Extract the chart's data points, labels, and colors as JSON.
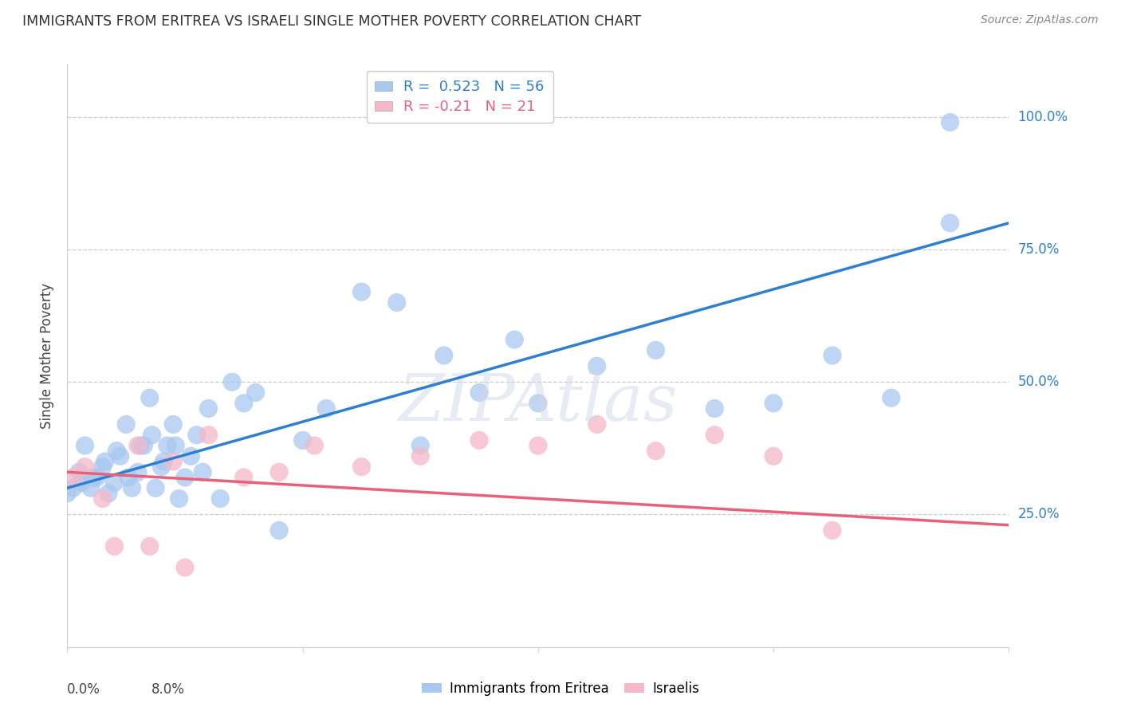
{
  "title": "IMMIGRANTS FROM ERITREA VS ISRAELI SINGLE MOTHER POVERTY CORRELATION CHART",
  "source": "Source: ZipAtlas.com",
  "ylabel": "Single Mother Poverty",
  "xmin": 0.0,
  "xmax": 8.0,
  "ymin": 0.0,
  "ymax": 110.0,
  "yticks": [
    25.0,
    50.0,
    75.0,
    100.0
  ],
  "ytick_labels": [
    "25.0%",
    "50.0%",
    "75.0%",
    "100.0%"
  ],
  "xtick_positions": [
    0.0,
    2.0,
    4.0,
    6.0,
    8.0
  ],
  "xtick_labels": [
    "0.0%",
    "",
    "",
    "",
    "8.0%"
  ],
  "watermark": "ZIPAtlas",
  "legend_blue_label": "Immigrants from Eritrea",
  "legend_pink_label": "Israelis",
  "r_blue": 0.523,
  "n_blue": 56,
  "r_pink": -0.21,
  "n_pink": 21,
  "blue_color": "#A8C8F0",
  "blue_line_color": "#2E7FD0",
  "pink_color": "#F5B8C8",
  "pink_line_color": "#E8607A",
  "blue_line_y0": 30.0,
  "blue_line_y1": 80.0,
  "pink_line_y0": 33.0,
  "pink_line_y1": 23.0,
  "blue_points_x": [
    0.0,
    0.1,
    0.15,
    0.2,
    0.25,
    0.3,
    0.35,
    0.4,
    0.45,
    0.5,
    0.55,
    0.6,
    0.65,
    0.7,
    0.75,
    0.8,
    0.85,
    0.9,
    0.95,
    1.0,
    1.05,
    1.1,
    1.15,
    1.2,
    1.3,
    1.4,
    1.5,
    1.6,
    1.8,
    2.0,
    2.2,
    2.5,
    2.8,
    3.0,
    3.2,
    3.5,
    3.8,
    4.0,
    4.5,
    5.0,
    5.5,
    6.0,
    6.5,
    7.0,
    7.5,
    0.05,
    0.12,
    0.22,
    0.32,
    0.42,
    0.52,
    0.62,
    0.72,
    0.82,
    0.92,
    7.5
  ],
  "blue_points_y": [
    29.0,
    33.0,
    38.0,
    30.0,
    32.0,
    34.0,
    29.0,
    31.0,
    36.0,
    42.0,
    30.0,
    33.0,
    38.0,
    47.0,
    30.0,
    34.0,
    38.0,
    42.0,
    28.0,
    32.0,
    36.0,
    40.0,
    33.0,
    45.0,
    28.0,
    50.0,
    46.0,
    48.0,
    22.0,
    39.0,
    45.0,
    67.0,
    65.0,
    38.0,
    55.0,
    48.0,
    58.0,
    46.0,
    53.0,
    56.0,
    45.0,
    46.0,
    55.0,
    47.0,
    80.0,
    30.0,
    31.0,
    32.0,
    35.0,
    37.0,
    32.0,
    38.0,
    40.0,
    35.0,
    38.0,
    99.0
  ],
  "pink_points_x": [
    0.05,
    0.15,
    0.3,
    0.6,
    0.9,
    1.2,
    1.5,
    1.8,
    2.1,
    2.5,
    3.0,
    3.5,
    4.0,
    4.5,
    5.0,
    5.5,
    6.0,
    6.5,
    0.4,
    0.7,
    1.0
  ],
  "pink_points_y": [
    32.0,
    34.0,
    28.0,
    38.0,
    35.0,
    40.0,
    32.0,
    33.0,
    38.0,
    34.0,
    36.0,
    39.0,
    38.0,
    42.0,
    37.0,
    40.0,
    36.0,
    22.0,
    19.0,
    19.0,
    15.0
  ]
}
